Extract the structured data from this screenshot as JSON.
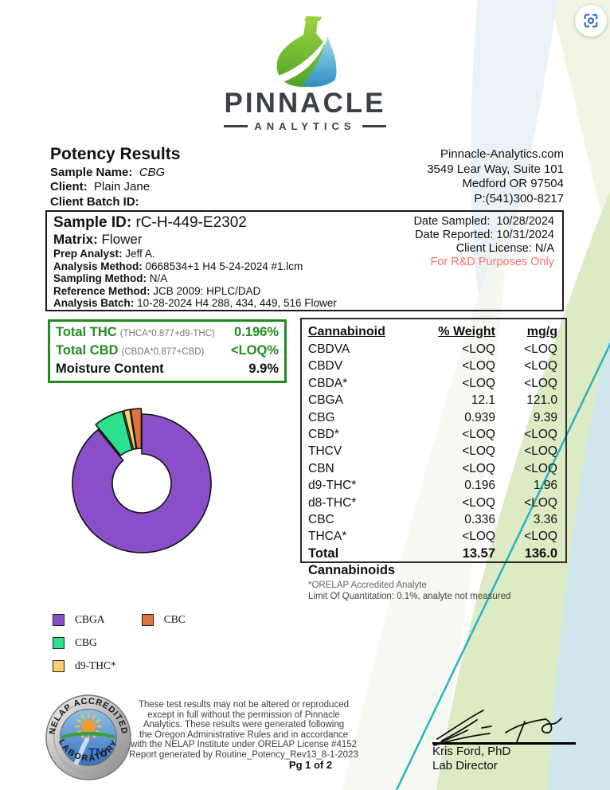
{
  "capture_button": {
    "icon": "screen-capture-icon"
  },
  "logo": {
    "word": "PINNACLE",
    "sub": "ANALYTICS"
  },
  "report": {
    "title": "Potency Results",
    "sample_name_label": "Sample Name:",
    "sample_name": "CBG",
    "client_label": "Client:",
    "client": "Plain Jane",
    "client_batch_label": "Client Batch ID:",
    "client_batch": ""
  },
  "company": {
    "website": "Pinnacle-Analytics.com",
    "address1": "3549 Lear Way, Suite 101",
    "address2": "Medford OR 97504",
    "phone": "P:(541)300-8217"
  },
  "sample_box": {
    "sample_id_label": "Sample ID:",
    "sample_id": "rC-H-449-E2302",
    "matrix_label": "Matrix:",
    "matrix": "Flower",
    "prep_analyst_label": "Prep Analyst:",
    "prep_analyst": "Jeff A.",
    "analysis_method_label": "Analysis Method:",
    "analysis_method": "0668534+1 H4 5-24-2024 #1.lcm",
    "sampling_method_label": "Sampling Method:",
    "sampling_method": "N/A",
    "reference_method_label": "Reference Method:",
    "reference_method": "JCB 2009: HPLC/DAD",
    "analysis_batch_label": "Analysis Batch:",
    "analysis_batch": "10-28-2024 H4 288, 434, 449, 516 Flower",
    "date_sampled_label": "Date Sampled:",
    "date_sampled": "10/28/2024",
    "date_reported_label": "Date Reported:",
    "date_reported": "10/31/2024",
    "client_license_label": "Client License:",
    "client_license": "N/A",
    "rd_notice": "For R&D Purposes Only"
  },
  "summary_box": {
    "rows": [
      {
        "label": "Total THC",
        "formula": "(THCA*0.877+d9-THC)",
        "value": "0.196%",
        "color": "#1f8c1f"
      },
      {
        "label": "Total CBD",
        "formula": "(CBDA*0.877+CBD)",
        "value": "<LOQ%",
        "color": "#1f8c1f"
      },
      {
        "label": "Moisture Content",
        "formula": "",
        "value": "9.9%",
        "color": "#111111"
      }
    ]
  },
  "cannabinoid_table": {
    "headers": [
      "Cannabinoid",
      "% Weight",
      "mg/g"
    ],
    "rows": [
      [
        "CBDVA",
        "<LOQ",
        "<LOQ"
      ],
      [
        "CBDV",
        "<LOQ",
        "<LOQ"
      ],
      [
        "CBDA*",
        "<LOQ",
        "<LOQ"
      ],
      [
        "CBGA",
        "12.1",
        "121.0"
      ],
      [
        "CBG",
        "0.939",
        "9.39"
      ],
      [
        "CBD*",
        "<LOQ",
        "<LOQ"
      ],
      [
        "THCV",
        "<LOQ",
        "<LOQ"
      ],
      [
        "CBN",
        "<LOQ",
        "<LOQ"
      ],
      [
        "d9-THC*",
        "0.196",
        "1.96"
      ],
      [
        "d8-THC*",
        "<LOQ",
        "<LOQ"
      ],
      [
        "CBC",
        "0.336",
        "3.36"
      ],
      [
        "THCA*",
        "<LOQ",
        "<LOQ"
      ]
    ],
    "total_row": [
      "Total Cannabinoids",
      "13.57",
      "136.0"
    ],
    "footnote1": "*ORELAP Accredited Analyte",
    "footnote2": "Limit Of Quantitation: 0.1%, analyte not measured"
  },
  "chart_data": {
    "type": "pie",
    "subtype": "donut",
    "categories": [
      "CBGA",
      "CBG",
      "d9-THC*",
      "CBC"
    ],
    "values": [
      12.1,
      0.939,
      0.196,
      0.336
    ],
    "unit": "% weight",
    "colors": [
      "#8a4fc8",
      "#2ce08e",
      "#f7d26e",
      "#e0703c"
    ],
    "explode": [
      false,
      true,
      true,
      true
    ],
    "start_angle_deg": 90,
    "direction": "clockwise",
    "legend_position": "below-left",
    "legend_columns": [
      [
        0,
        1,
        2
      ],
      [
        3
      ]
    ]
  },
  "footer": {
    "seal": {
      "top_text": "NELAP ACCREDITED",
      "bottom_text": "LABORATORY",
      "center_text": "TNI"
    },
    "disclaimer_lines": [
      "These test results may not be altered or reproduced",
      "except in full without the permission of Pinnacle",
      "Analytics. These results were generated following",
      "the Oregon Administrative Rules and in accordance",
      "with the NELAP Institute under ORELAP License #4152",
      "Report generated by Routine_Potency_Rev13_8-1-2023"
    ],
    "page_label": "Pg 1 of 2",
    "signer_name": "Kris Ford, PhD",
    "signer_title": "Lab Director"
  },
  "colors": {
    "summary_green": "#1f8c1f",
    "notice_red": "#f4736f",
    "teal_line": "#28b2c6",
    "band_green": "#dcebc3",
    "band_blue": "#cfe6ed"
  }
}
